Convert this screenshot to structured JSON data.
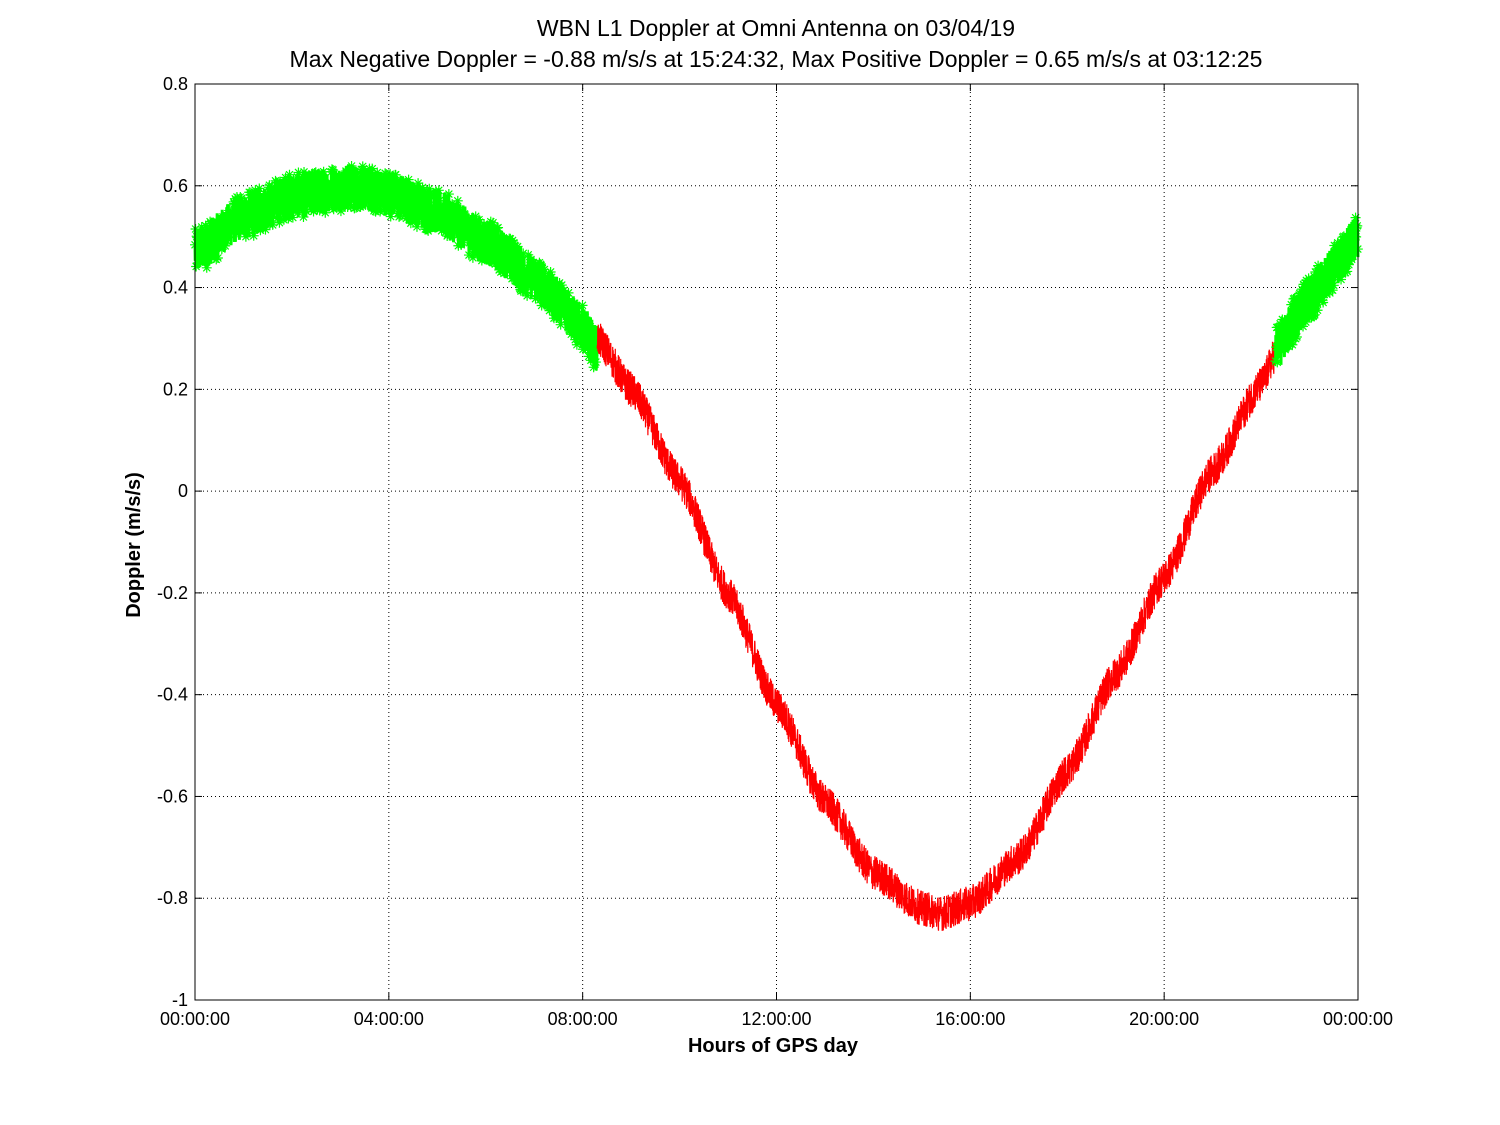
{
  "colors": {
    "green": "#00ff00",
    "red": "#ff0000",
    "axis": "#000000",
    "grid": "#000000",
    "background": "#ffffff"
  },
  "chart_data": {
    "type": "line",
    "title": "WBN  L1 Doppler at Omni Antenna on 03/04/19",
    "subtitle": "Max Negative Doppler = -0.88 m/s/s  at 15:24:32,   Max Positive Doppler = 0.65 m/s/s  at 03:12:25",
    "xlabel": "Hours of GPS day",
    "ylabel": "Doppler (m/s/s)",
    "xlim": [
      0,
      24
    ],
    "ylim": [
      -1,
      0.8
    ],
    "grid": true,
    "grid_style": "dotted",
    "legend": "none",
    "x_ticks": [
      0,
      4,
      8,
      12,
      16,
      20,
      24
    ],
    "x_tick_labels": [
      "00:00:00",
      "04:00:00",
      "08:00:00",
      "12:00:00",
      "16:00:00",
      "20:00:00",
      "00:00:00"
    ],
    "y_ticks": [
      0.8,
      0.6,
      0.4,
      0.2,
      0,
      -0.2,
      -0.4,
      -0.6,
      -0.8,
      -1
    ],
    "y_tick_labels": [
      "0.8",
      "0.6",
      "0.4",
      "0.2",
      "0",
      "-0.2",
      "-0.4",
      "-0.6",
      "-0.8",
      "-1"
    ],
    "series": [
      {
        "color": "#00ff00",
        "marker": "asterisk",
        "noise_band": 0.09,
        "x": [
          0,
          1,
          2,
          3,
          3.2,
          4,
          5,
          6,
          7,
          7.5,
          8,
          8.3
        ],
        "y": [
          0.47,
          0.54,
          0.58,
          0.595,
          0.6,
          0.585,
          0.55,
          0.49,
          0.42,
          0.375,
          0.32,
          0.28
        ]
      },
      {
        "color": "#ff0000",
        "marker": "none",
        "noise_band": 0.07,
        "x": [
          8.3,
          9,
          10,
          11,
          12,
          13,
          14,
          15,
          15.4,
          16,
          17,
          18,
          19,
          20,
          21,
          22,
          22.3
        ],
        "y": [
          0.3,
          0.2,
          0.02,
          -0.2,
          -0.42,
          -0.61,
          -0.75,
          -0.82,
          -0.83,
          -0.81,
          -0.72,
          -0.55,
          -0.36,
          -0.17,
          0.04,
          0.21,
          0.27
        ]
      },
      {
        "color": "#00ff00",
        "marker": "asterisk",
        "noise_band": 0.09,
        "x": [
          22.3,
          23,
          23.5,
          24
        ],
        "y": [
          0.28,
          0.38,
          0.44,
          0.5
        ]
      }
    ]
  }
}
